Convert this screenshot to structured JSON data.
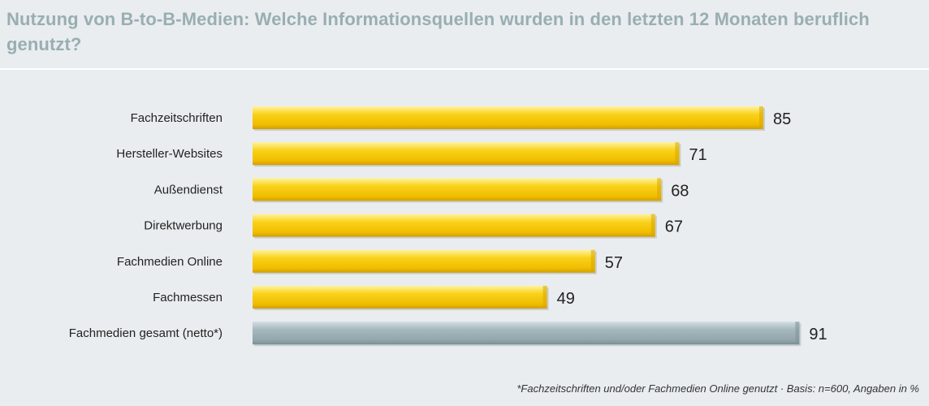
{
  "chart_data": {
    "type": "bar",
    "orientation": "horizontal",
    "title": "Nutzung von B-to-B-Medien: Welche Informationsquellen wurden in den letzten 12 Monaten beruflich genutzt?",
    "categories": [
      "Fachzeitschriften",
      "Hersteller-Websites",
      "Außendienst",
      "Direktwerbung",
      "Fachmedien Online",
      "Fachmessen",
      "Fachmedien gesamt (netto*)"
    ],
    "values": [
      85,
      71,
      68,
      67,
      57,
      49,
      91
    ],
    "xlim": [
      0,
      100
    ],
    "grid": false,
    "colors": {
      "default": "#f5c400",
      "highlight": "#97aab0"
    },
    "highlight_category": "Fachmedien gesamt (netto*)",
    "footnote": "*Fachzeitschriften und/oder Fachmedien Online genutzt · Basis: n=600, Angaben in %"
  }
}
